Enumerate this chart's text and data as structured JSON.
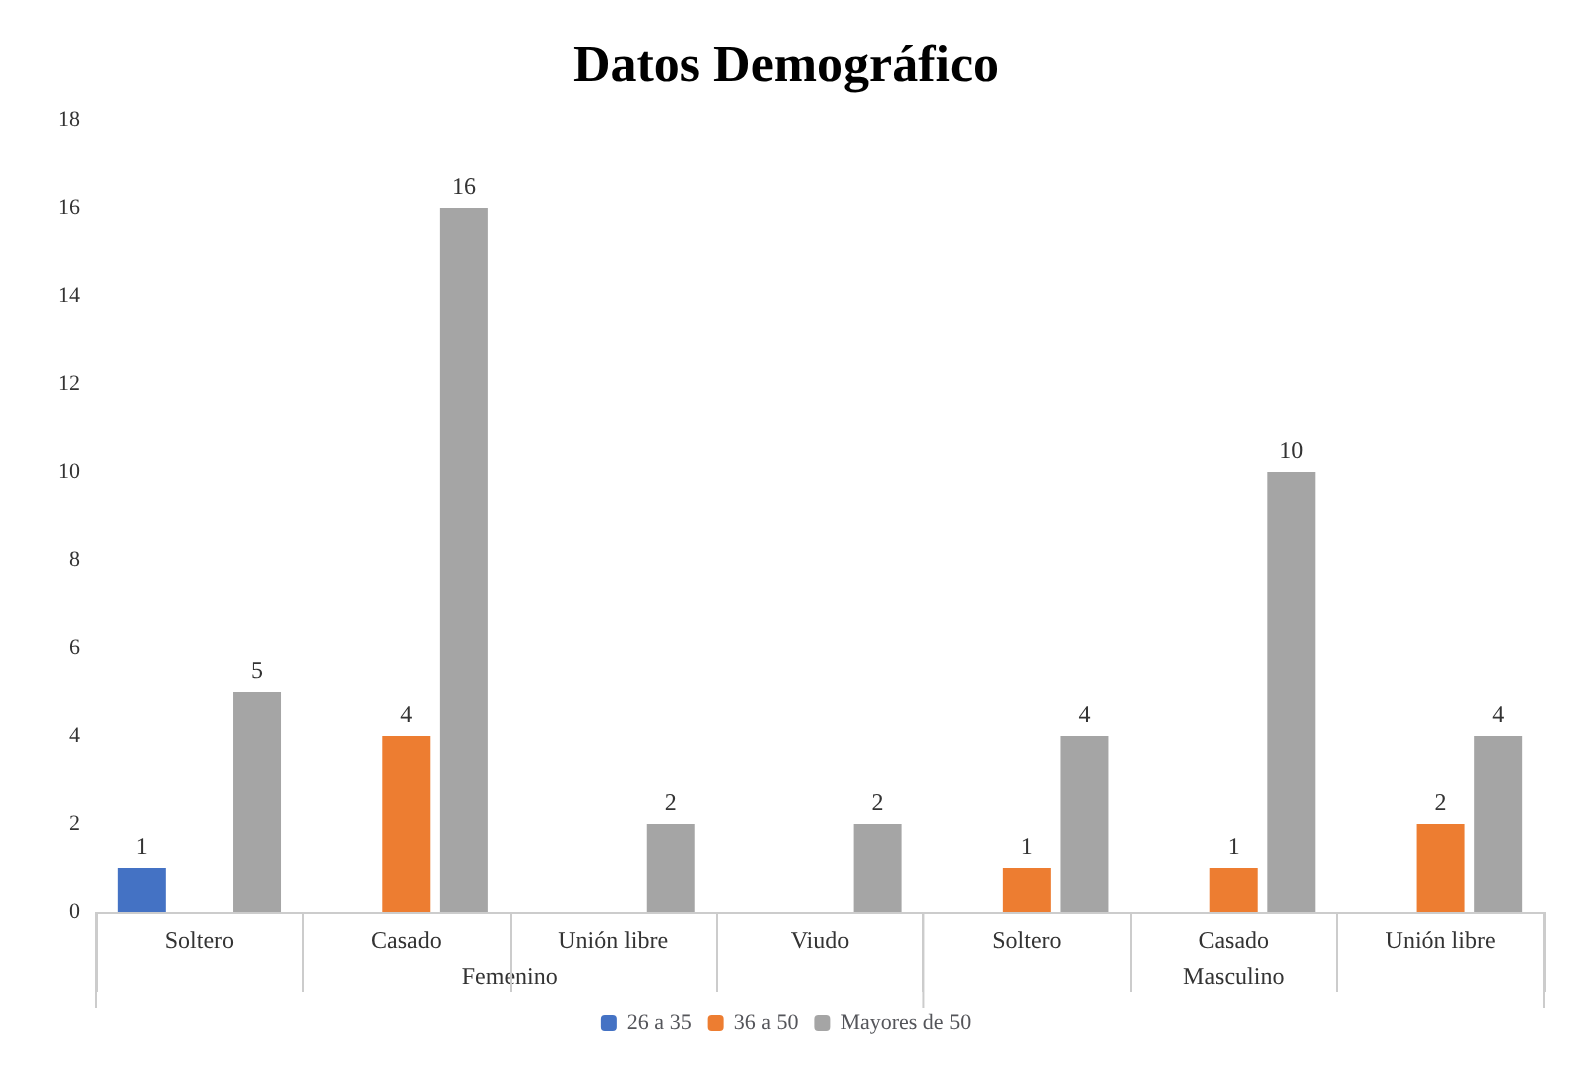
{
  "chart_data": {
    "type": "bar",
    "title": "Datos Demográfico",
    "categories": [
      "Soltero",
      "Casado",
      "Unión libre",
      "Viudo",
      "Soltero",
      "Casado",
      "Unión libre"
    ],
    "series": [
      {
        "name": "26 a 35",
        "color": "#4472c4",
        "values": [
          1,
          null,
          null,
          null,
          null,
          null,
          null
        ]
      },
      {
        "name": "36 a 50",
        "color": "#ed7d31",
        "values": [
          null,
          4,
          null,
          null,
          1,
          1,
          2
        ]
      },
      {
        "name": "Mayores de 50",
        "color": "#a5a5a5",
        "values": [
          5,
          16,
          2,
          2,
          4,
          10,
          4
        ]
      }
    ],
    "annotations": [
      "Femenino",
      "Masculino"
    ],
    "ylim": [
      0,
      18
    ],
    "yticks": [
      0,
      2,
      4,
      6,
      8,
      10,
      12,
      14,
      16,
      18
    ],
    "grid": false,
    "legend": "bottom",
    "data_labels": true
  }
}
